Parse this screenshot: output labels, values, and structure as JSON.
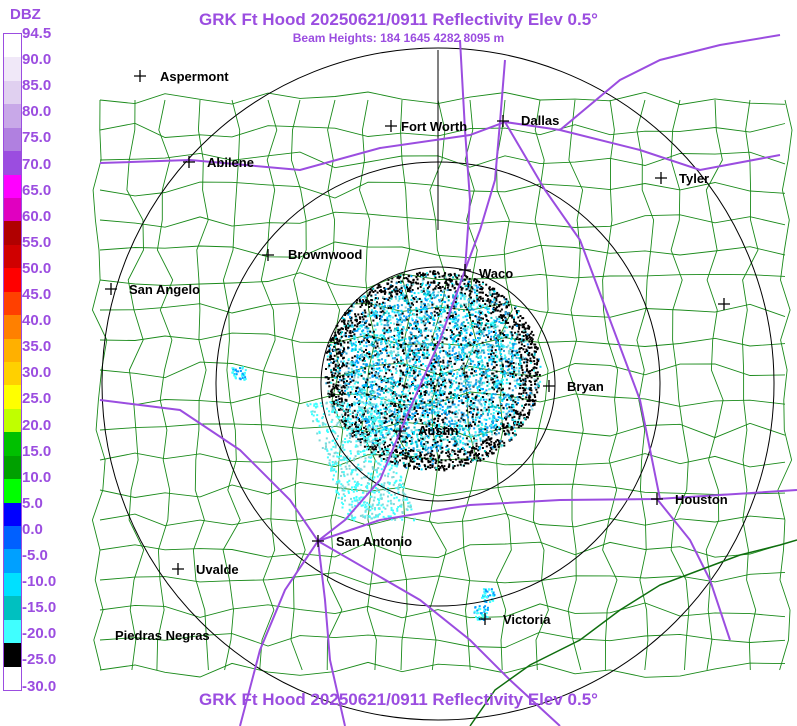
{
  "header": {
    "title": "GRK Ft Hood 20250621/0911 Reflectivity Elev 0.5°",
    "subtitle": "Beam Heights: 184 1645 4282 8095 m"
  },
  "footer": {
    "title": "GRK Ft Hood 20250621/0911 Reflectivity Elev 0.5°"
  },
  "legend": {
    "unit": "DBZ",
    "ticks": [
      "94.5",
      "90.0",
      "85.0",
      "80.0",
      "75.0",
      "70.0",
      "65.0",
      "60.0",
      "55.0",
      "50.0",
      "45.0",
      "40.0",
      "35.0",
      "30.0",
      "25.0",
      "20.0",
      "15.0",
      "10.0",
      "5.0",
      "0.0",
      "-5.0",
      "-10.0",
      "-15.0",
      "-20.0",
      "-25.0",
      "-30.0"
    ],
    "colors": [
      "#ffffff",
      "#f0e8f8",
      "#e0d0f0",
      "#c8a8e8",
      "#b080e0",
      "#9b4de0",
      "#ff00ff",
      "#e000c0",
      "#b00000",
      "#d00000",
      "#ff0000",
      "#ff4000",
      "#ff8000",
      "#ffb000",
      "#ffd000",
      "#ffff00",
      "#c0ff00",
      "#00c000",
      "#00a000",
      "#00ff00",
      "#0000ff",
      "#0060ff",
      "#00a0ff",
      "#00e0ff",
      "#00c0c0",
      "#40ffff",
      "#000000",
      "#ffffff"
    ]
  },
  "map": {
    "radar": "GRK",
    "colors": {
      "county_lines": "#1a8a1a",
      "highways": "#9b4de0",
      "range_rings": "#000000"
    },
    "cities": [
      {
        "name": "Aspermont"
      },
      {
        "name": "Fort Worth"
      },
      {
        "name": "Dallas"
      },
      {
        "name": "Abilene"
      },
      {
        "name": "Tyler"
      },
      {
        "name": "Brownwood"
      },
      {
        "name": "Waco"
      },
      {
        "name": "San Angelo"
      },
      {
        "name": "Bryan"
      },
      {
        "name": "Austin"
      },
      {
        "name": "Houston"
      },
      {
        "name": "San Antonio"
      },
      {
        "name": "Uvalde"
      },
      {
        "name": "Victoria"
      },
      {
        "name": "Piedras Negras"
      },
      {
        "name": ""
      }
    ]
  }
}
